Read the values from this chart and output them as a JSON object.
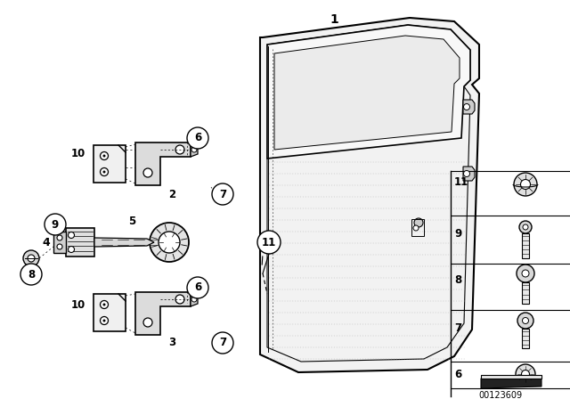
{
  "bg_color": "#ffffff",
  "line_color": "#000000",
  "catalog_num": "00123609",
  "door_color": "#f2f2f2",
  "part_color": "#e8e8e8",
  "dark_color": "#1a1a1a"
}
